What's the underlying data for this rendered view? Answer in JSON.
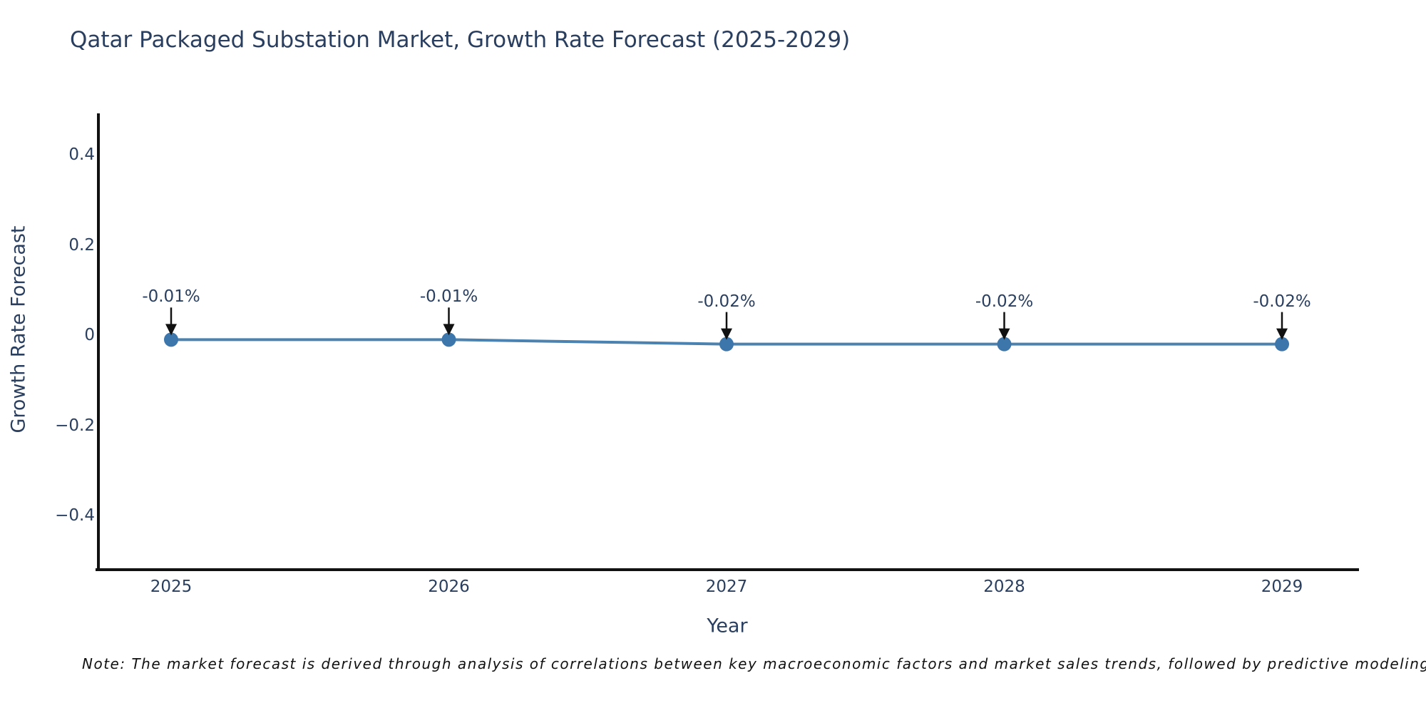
{
  "note": {
    "text": "Note: The market forecast is derived through analysis of correlations between key macroeconomic factors and market sales trends, followed by predictive modeling to project future sales."
  },
  "colors": {
    "text": "#2a3f5f",
    "axis_line": "#111111",
    "line": "#4c82b0",
    "marker": "#3d76ab",
    "arrow": "#111111",
    "note_text": "#111111"
  },
  "chart_data": {
    "type": "line",
    "title": "Qatar Packaged Substation Market, Growth Rate Forecast (2025-2029)",
    "xlabel": "Year",
    "ylabel": "Growth Rate Forecast",
    "x": [
      2025,
      2026,
      2027,
      2028,
      2029
    ],
    "xticklabels": [
      "2025",
      "2026",
      "2027",
      "2028",
      "2029"
    ],
    "y": [
      -0.01,
      -0.01,
      -0.02,
      -0.02,
      -0.02
    ],
    "point_labels": [
      "-0.01%",
      "-0.01%",
      "-0.02%",
      "-0.02%",
      "-0.02%"
    ],
    "yticks": [
      0.4,
      0.2,
      0,
      -0.2,
      -0.4
    ],
    "ylim": [
      -0.52,
      0.49
    ],
    "grid": false,
    "legend": "none",
    "marker_style": "circle",
    "annotation_arrows": "down-to-point"
  }
}
